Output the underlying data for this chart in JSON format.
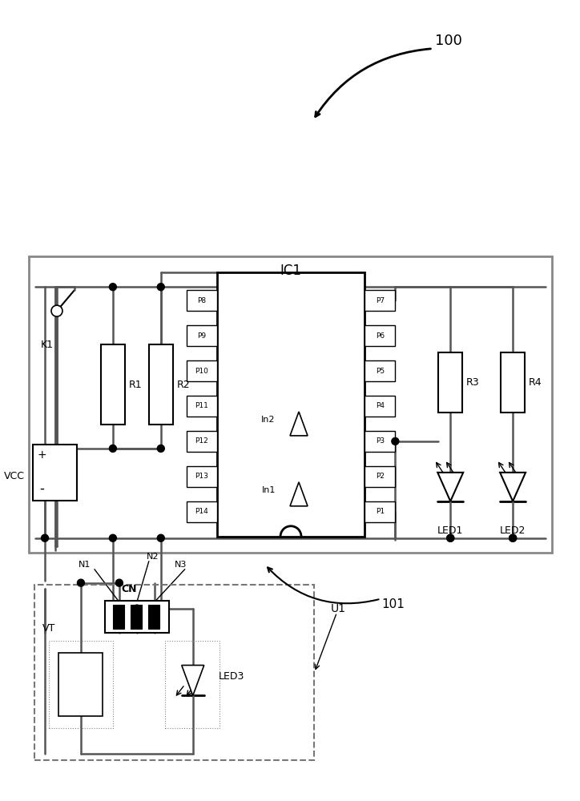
{
  "title": "100",
  "label_101": "101",
  "label_IC1": "IC1",
  "label_U1": "U1",
  "label_CN": "CN",
  "label_VCC": "VCC",
  "label_K1": "K1",
  "label_R1": "R1",
  "label_R2": "R2",
  "label_R3": "R3",
  "label_R4": "R4",
  "label_LED1": "LED1",
  "label_LED2": "LED2",
  "label_LED3": "LED3",
  "label_VT": "VT",
  "label_In1": "In1",
  "label_In2": "In2",
  "label_N1": "N1",
  "label_N2": "N2",
  "label_N3": "N3",
  "pins_left": [
    "P8",
    "P9",
    "P10",
    "P11",
    "P12",
    "P13",
    "P14"
  ],
  "pins_right": [
    "P7",
    "P6",
    "P5",
    "P4",
    "P3",
    "P2",
    "P1"
  ],
  "bg_color": "#ffffff",
  "ic1_border": "#888888",
  "wire_color": "#555555"
}
